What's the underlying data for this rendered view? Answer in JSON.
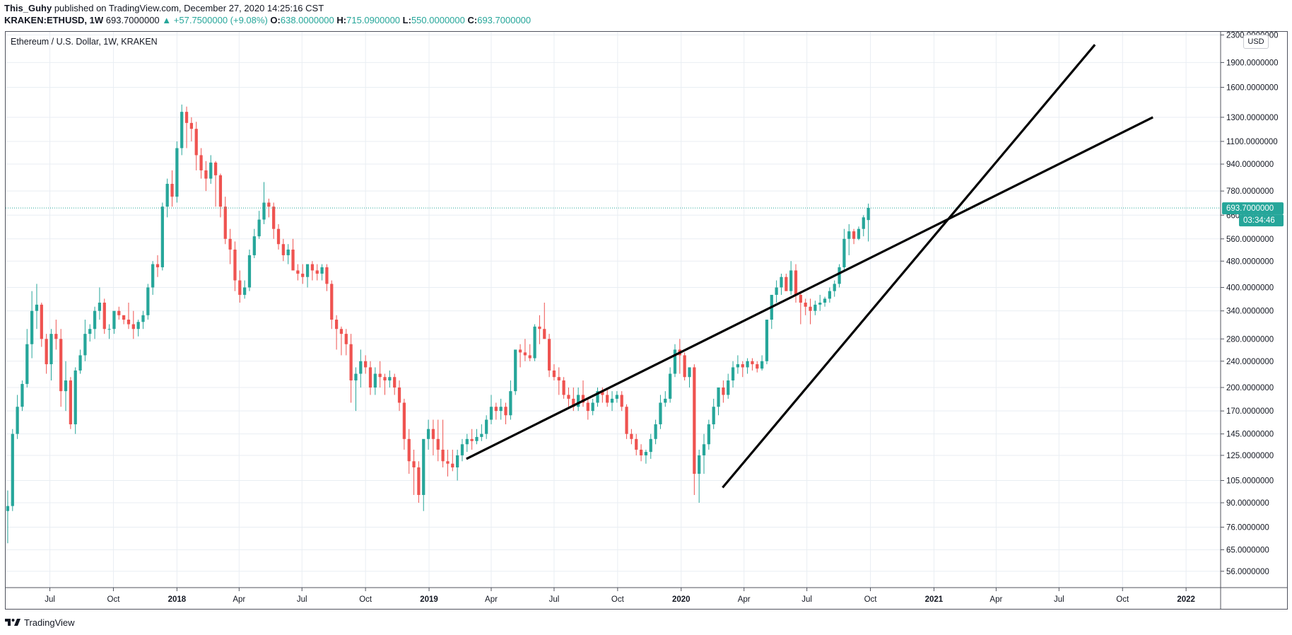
{
  "header": {
    "author": "This_Guhy",
    "published_text": "published on TradingView.com, December 27, 2020 14:25:16 CST",
    "symbol": "KRAKEN:ETHUSD, 1W",
    "last": "693.7000000",
    "change": "▲ +57.7500000 (+9.08%)",
    "o_label": "O:",
    "o_value": "638.0000000",
    "h_label": "H:",
    "h_value": "715.0900000",
    "l_label": "L:",
    "l_value": "550.0000000",
    "c_label": "C:",
    "c_value": "693.7000000"
  },
  "legend_title": "Ethereum / U.S. Dollar, 1W, KRAKEN",
  "currency_button": "USD",
  "footer": {
    "brand": "TradingView",
    "logo_icon": "tradingview-logo-icon"
  },
  "colors": {
    "up": "#26a69a",
    "down": "#ef5350",
    "grid": "#e9eef3",
    "trendline": "#000000",
    "price_label": "#26a69a"
  },
  "chart_data": {
    "type": "candlestick",
    "title": "Ethereum / U.S. Dollar, 1W, KRAKEN",
    "y_scale": "log",
    "yticks": [
      "2300.0000000",
      "1900.0000000",
      "1600.0000000",
      "1300.0000000",
      "1100.0000000",
      "940.0000000",
      "780.0000000",
      "660.0000000",
      "560.0000000",
      "480.0000000",
      "400.0000000",
      "340.0000000",
      "280.0000000",
      "240.0000000",
      "200.0000000",
      "170.0000000",
      "145.0000000",
      "125.0000000",
      "105.0000000",
      "90.0000000",
      "76.0000000",
      "65.0000000",
      "56.0000000"
    ],
    "xticks": [
      {
        "label": "Jul",
        "date": "2017-07-01",
        "bold": false
      },
      {
        "label": "Oct",
        "date": "2017-10-01",
        "bold": false
      },
      {
        "label": "2018",
        "date": "2018-01-01",
        "bold": true
      },
      {
        "label": "Apr",
        "date": "2018-04-01",
        "bold": false
      },
      {
        "label": "Jul",
        "date": "2018-07-01",
        "bold": false
      },
      {
        "label": "Oct",
        "date": "2018-10-01",
        "bold": false
      },
      {
        "label": "2019",
        "date": "2019-01-01",
        "bold": true
      },
      {
        "label": "Apr",
        "date": "2019-04-01",
        "bold": false
      },
      {
        "label": "Jul",
        "date": "2019-07-01",
        "bold": false
      },
      {
        "label": "Oct",
        "date": "2019-10-01",
        "bold": false
      },
      {
        "label": "2020",
        "date": "2020-01-01",
        "bold": true
      },
      {
        "label": "Apr",
        "date": "2020-04-01",
        "bold": false
      },
      {
        "label": "Jul",
        "date": "2020-07-01",
        "bold": false
      },
      {
        "label": "Oct",
        "date": "2020-10-01",
        "bold": false
      },
      {
        "label": "2021",
        "date": "2021-01-01",
        "bold": true
      },
      {
        "label": "Apr",
        "date": "2021-04-01",
        "bold": false
      },
      {
        "label": "Jul",
        "date": "2021-07-01",
        "bold": false
      },
      {
        "label": "Oct",
        "date": "2021-10-01",
        "bold": false
      },
      {
        "label": "2022",
        "date": "2022-01-01",
        "bold": true
      }
    ],
    "x_range": [
      "2017-04-28",
      "2022-02-20"
    ],
    "y_range": [
      50,
      2350
    ],
    "last_price": 693.7,
    "last_price_label": "693.7000000",
    "countdown": "03:34:46",
    "candles_from": "2017-05-01",
    "candles_interval_days": 7,
    "candles_ohlc": [
      [
        85,
        98,
        68,
        88
      ],
      [
        88,
        150,
        85,
        145
      ],
      [
        145,
        190,
        140,
        175
      ],
      [
        175,
        210,
        170,
        205
      ],
      [
        205,
        300,
        200,
        270
      ],
      [
        270,
        390,
        245,
        340
      ],
      [
        340,
        410,
        300,
        355
      ],
      [
        355,
        360,
        265,
        280
      ],
      [
        280,
        290,
        220,
        235
      ],
      [
        235,
        300,
        210,
        290
      ],
      [
        290,
        320,
        260,
        280
      ],
      [
        280,
        300,
        175,
        195
      ],
      [
        195,
        240,
        170,
        210
      ],
      [
        210,
        215,
        150,
        155
      ],
      [
        155,
        230,
        145,
        225
      ],
      [
        225,
        260,
        220,
        250
      ],
      [
        250,
        320,
        240,
        290
      ],
      [
        290,
        310,
        275,
        300
      ],
      [
        300,
        350,
        280,
        340
      ],
      [
        340,
        400,
        320,
        360
      ],
      [
        360,
        370,
        290,
        300
      ],
      [
        300,
        310,
        280,
        300
      ],
      [
        300,
        330,
        290,
        340
      ],
      [
        340,
        350,
        320,
        330
      ],
      [
        330,
        320,
        310,
        320
      ],
      [
        320,
        360,
        300,
        310
      ],
      [
        310,
        340,
        280,
        300
      ],
      [
        300,
        320,
        285,
        315
      ],
      [
        315,
        340,
        300,
        330
      ],
      [
        330,
        410,
        320,
        400
      ],
      [
        400,
        480,
        380,
        470
      ],
      [
        470,
        500,
        430,
        460
      ],
      [
        460,
        720,
        450,
        700
      ],
      [
        700,
        850,
        650,
        820
      ],
      [
        820,
        900,
        700,
        750
      ],
      [
        750,
        1100,
        720,
        1050
      ],
      [
        1050,
        1420,
        1000,
        1350
      ],
      [
        1350,
        1400,
        1050,
        1250
      ],
      [
        1250,
        1300,
        1100,
        1200
      ],
      [
        1200,
        1260,
        900,
        1000
      ],
      [
        1000,
        1050,
        850,
        900
      ],
      [
        900,
        960,
        780,
        850
      ],
      [
        850,
        1000,
        820,
        950
      ],
      [
        950,
        960,
        700,
        870
      ],
      [
        870,
        880,
        650,
        700
      ],
      [
        700,
        750,
        540,
        560
      ],
      [
        560,
        600,
        470,
        520
      ],
      [
        520,
        550,
        390,
        420
      ],
      [
        420,
        450,
        360,
        380
      ],
      [
        380,
        420,
        370,
        400
      ],
      [
        400,
        520,
        390,
        500
      ],
      [
        500,
        600,
        490,
        570
      ],
      [
        570,
        680,
        560,
        640
      ],
      [
        640,
        830,
        620,
        720
      ],
      [
        720,
        740,
        650,
        700
      ],
      [
        700,
        720,
        560,
        600
      ],
      [
        600,
        620,
        520,
        540
      ],
      [
        540,
        560,
        480,
        500
      ],
      [
        500,
        540,
        470,
        520
      ],
      [
        520,
        560,
        480,
        450
      ],
      [
        450,
        470,
        420,
        440
      ],
      [
        440,
        470,
        410,
        430
      ],
      [
        430,
        460,
        400,
        470
      ],
      [
        470,
        480,
        420,
        450
      ],
      [
        450,
        470,
        420,
        440
      ],
      [
        440,
        470,
        420,
        460
      ],
      [
        460,
        470,
        390,
        410
      ],
      [
        410,
        420,
        300,
        320
      ],
      [
        320,
        330,
        260,
        300
      ],
      [
        300,
        305,
        250,
        290
      ],
      [
        290,
        300,
        250,
        270
      ],
      [
        270,
        290,
        180,
        210
      ],
      [
        210,
        230,
        170,
        220
      ],
      [
        220,
        260,
        200,
        240
      ],
      [
        240,
        250,
        220,
        230
      ],
      [
        230,
        240,
        190,
        200
      ],
      [
        200,
        230,
        190,
        220
      ],
      [
        220,
        240,
        200,
        215
      ],
      [
        215,
        220,
        190,
        210
      ],
      [
        210,
        225,
        200,
        215
      ],
      [
        215,
        220,
        190,
        200
      ],
      [
        200,
        210,
        170,
        180
      ],
      [
        180,
        185,
        130,
        140
      ],
      [
        140,
        150,
        110,
        120
      ],
      [
        120,
        130,
        95,
        115
      ],
      [
        115,
        120,
        90,
        95
      ],
      [
        95,
        130,
        85,
        140
      ],
      [
        140,
        160,
        130,
        150
      ],
      [
        150,
        160,
        125,
        140
      ],
      [
        140,
        160,
        120,
        130
      ],
      [
        130,
        160,
        115,
        120
      ],
      [
        120,
        130,
        108,
        118
      ],
      [
        118,
        130,
        112,
        115
      ],
      [
        115,
        130,
        105,
        125
      ],
      [
        125,
        140,
        120,
        135
      ],
      [
        135,
        145,
        128,
        140
      ],
      [
        140,
        150,
        130,
        138
      ],
      [
        138,
        150,
        135,
        142
      ],
      [
        142,
        155,
        138,
        145
      ],
      [
        145,
        165,
        140,
        160
      ],
      [
        160,
        190,
        155,
        175
      ],
      [
        175,
        180,
        160,
        170
      ],
      [
        170,
        185,
        160,
        175
      ],
      [
        175,
        180,
        155,
        165
      ],
      [
        165,
        210,
        160,
        195
      ],
      [
        195,
        240,
        190,
        260
      ],
      [
        260,
        270,
        230,
        255
      ],
      [
        255,
        280,
        240,
        250
      ],
      [
        250,
        270,
        240,
        245
      ],
      [
        245,
        310,
        240,
        305
      ],
      [
        305,
        330,
        270,
        300
      ],
      [
        300,
        360,
        280,
        280
      ],
      [
        280,
        290,
        215,
        225
      ],
      [
        225,
        235,
        210,
        215
      ],
      [
        215,
        230,
        190,
        210
      ],
      [
        210,
        215,
        185,
        190
      ],
      [
        190,
        200,
        175,
        185
      ],
      [
        185,
        200,
        170,
        175
      ],
      [
        175,
        200,
        170,
        190
      ],
      [
        190,
        210,
        175,
        180
      ],
      [
        180,
        185,
        160,
        170
      ],
      [
        170,
        185,
        165,
        180
      ],
      [
        180,
        200,
        175,
        195
      ],
      [
        195,
        200,
        180,
        190
      ],
      [
        190,
        200,
        175,
        180
      ],
      [
        180,
        195,
        170,
        185
      ],
      [
        185,
        195,
        180,
        190
      ],
      [
        190,
        195,
        170,
        175
      ],
      [
        175,
        178,
        140,
        145
      ],
      [
        145,
        150,
        135,
        140
      ],
      [
        140,
        145,
        125,
        130
      ],
      [
        130,
        135,
        120,
        125
      ],
      [
        125,
        130,
        118,
        128
      ],
      [
        128,
        145,
        122,
        140
      ],
      [
        140,
        160,
        135,
        155
      ],
      [
        155,
        190,
        150,
        180
      ],
      [
        180,
        195,
        175,
        185
      ],
      [
        185,
        230,
        180,
        220
      ],
      [
        220,
        270,
        215,
        260
      ],
      [
        260,
        280,
        220,
        250
      ],
      [
        250,
        255,
        210,
        215
      ],
      [
        215,
        230,
        200,
        230
      ],
      [
        230,
        235,
        95,
        110
      ],
      [
        110,
        130,
        90,
        125
      ],
      [
        125,
        145,
        110,
        135
      ],
      [
        135,
        160,
        130,
        155
      ],
      [
        155,
        185,
        150,
        175
      ],
      [
        175,
        200,
        165,
        200
      ],
      [
        200,
        210,
        180,
        190
      ],
      [
        190,
        220,
        185,
        210
      ],
      [
        210,
        240,
        200,
        230
      ],
      [
        230,
        250,
        220,
        235
      ],
      [
        235,
        240,
        215,
        230
      ],
      [
        230,
        245,
        220,
        240
      ],
      [
        240,
        245,
        225,
        235
      ],
      [
        235,
        240,
        222,
        228
      ],
      [
        228,
        250,
        225,
        240
      ],
      [
        240,
        320,
        235,
        320
      ],
      [
        320,
        340,
        300,
        380
      ],
      [
        380,
        420,
        360,
        400
      ],
      [
        400,
        440,
        380,
        430
      ],
      [
        430,
        440,
        400,
        390
      ],
      [
        390,
        480,
        380,
        450
      ],
      [
        450,
        470,
        360,
        380
      ],
      [
        380,
        390,
        310,
        360
      ],
      [
        360,
        370,
        330,
        350
      ],
      [
        350,
        370,
        310,
        340
      ],
      [
        340,
        365,
        330,
        355
      ],
      [
        355,
        380,
        340,
        360
      ],
      [
        360,
        375,
        350,
        370
      ],
      [
        370,
        400,
        360,
        390
      ],
      [
        390,
        420,
        375,
        410
      ],
      [
        410,
        470,
        400,
        460
      ],
      [
        460,
        600,
        450,
        560
      ],
      [
        560,
        620,
        500,
        590
      ],
      [
        590,
        600,
        540,
        560
      ],
      [
        560,
        610,
        555,
        600
      ],
      [
        600,
        660,
        570,
        650
      ],
      [
        638,
        715,
        550,
        694
      ]
    ],
    "trendlines": [
      {
        "from": {
          "date": "2019-02-24",
          "price": 122
        },
        "to": {
          "date": "2021-11-14",
          "price": 1300
        }
      },
      {
        "from": {
          "date": "2020-03-01",
          "price": 100
        },
        "to": {
          "date": "2021-08-22",
          "price": 2150
        }
      }
    ]
  }
}
